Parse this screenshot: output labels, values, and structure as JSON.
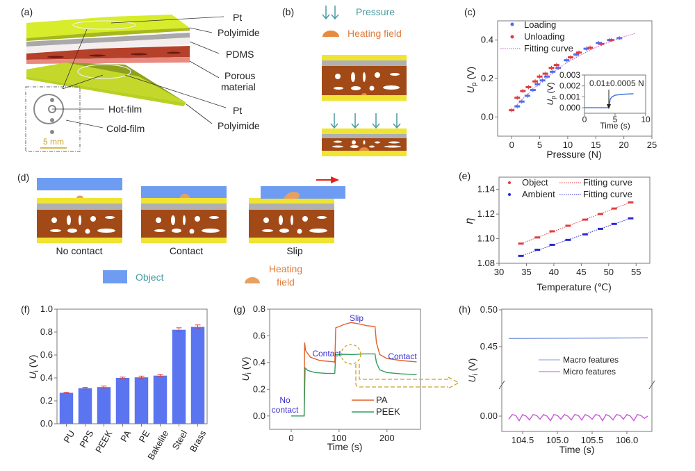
{
  "panels": {
    "a": "(a)",
    "b": "(b)",
    "c": "(c)",
    "d": "(d)",
    "e": "(e)",
    "f": "(f)",
    "g": "(g)",
    "h": "(h)"
  },
  "diagram_a": {
    "pt_top": "Pt",
    "polyimide_top": "Polyimide",
    "pdms": "PDMS",
    "porous_1": "Porous",
    "porous_2": "material",
    "pt_bottom": "Pt",
    "polyimide_bottom": "Polyimide",
    "hot_film": "Hot-film",
    "cold_film": "Cold-film",
    "scale_bar": "5 mm",
    "colors": {
      "polyimide": "#d7ec2a",
      "pdms": "#b9b9b9",
      "porous": "#b5412a",
      "pt": "#ffffff",
      "scale": "#c9a227"
    }
  },
  "diagram_b": {
    "pressure": "Pressure",
    "heating_field": "Heating field",
    "colors": {
      "pressure": "#4a9a9f",
      "heating": "#e07b3a",
      "layer_yellow": "#f0e433",
      "layer_gray": "#b0b0b0",
      "layer_brown": "#a24a17"
    }
  },
  "diagram_d": {
    "states": [
      "No contact",
      "Contact",
      "Slip"
    ],
    "legend_object": "Object",
    "legend_heating_1": "Heating",
    "legend_heating_2": "field",
    "colors": {
      "object": "#6e9cf2",
      "heating": "#e8a060",
      "slip_arrow": "#e8201a",
      "legend_text": "#4a9a9f"
    }
  },
  "chart_data": [
    {
      "id": "c",
      "type": "scatter",
      "xlabel": "Pressure (N)",
      "ylabel": {
        "main": "U",
        "sub": "p",
        "unit": " (V)"
      },
      "xlim": [
        -2.5,
        25
      ],
      "ylim": [
        -0.1,
        0.5
      ],
      "xticks": [
        0,
        5,
        10,
        15,
        20,
        25
      ],
      "yticks": [
        0.0,
        0.2,
        0.4
      ],
      "ytick_labels": [
        "0.0",
        "0.2",
        "0.4"
      ],
      "series": [
        {
          "name": "Loading",
          "color": "#4a6ff0",
          "x": [
            1,
            1.8,
            2.8,
            3.8,
            4.6,
            5.5,
            6.3,
            7.3,
            8.3,
            9.8,
            11.5,
            13.3,
            15.5,
            17.5,
            19.2
          ],
          "y": [
            0.055,
            0.08,
            0.11,
            0.14,
            0.17,
            0.19,
            0.21,
            0.235,
            0.255,
            0.295,
            0.325,
            0.355,
            0.385,
            0.4,
            0.41
          ]
        },
        {
          "name": "Unloading",
          "color": "#e23b3b",
          "x": [
            0,
            1,
            2,
            3,
            4.2,
            5,
            6,
            7.1,
            8,
            10.5,
            12,
            14,
            16,
            17.8
          ],
          "y": [
            0.035,
            0.1,
            0.135,
            0.155,
            0.185,
            0.21,
            0.225,
            0.255,
            0.27,
            0.31,
            0.335,
            0.36,
            0.38,
            0.4
          ]
        },
        {
          "name": "Fitting curve",
          "color": "#c04fc0",
          "style": "dotted",
          "x": [
            0,
            2,
            4,
            6,
            8,
            10,
            12,
            14,
            16,
            18,
            20,
            22
          ],
          "y": [
            0.035,
            0.095,
            0.15,
            0.2,
            0.245,
            0.285,
            0.318,
            0.348,
            0.375,
            0.397,
            0.417,
            0.435
          ]
        }
      ],
      "legend": "top-left"
    },
    {
      "id": "c_inset",
      "type": "line",
      "xlabel": "Time (s)",
      "ylabel": {
        "main": "U",
        "sub": "p",
        "unit": " (V)"
      },
      "xlim": [
        0,
        10
      ],
      "ylim": [
        -0.0005,
        0.003
      ],
      "xticks": [
        0,
        5,
        10
      ],
      "yticks": [
        0,
        0.001,
        0.002,
        0.003
      ],
      "ytick_labels": [
        "0.000",
        "0.001",
        "0.002",
        "0.003"
      ],
      "annotation": "0.01±0.0005 N",
      "annotation_x": 4,
      "series": [
        {
          "color": "#3b6fd8",
          "x": [
            0,
            3.9,
            4.0,
            4.2,
            4.5,
            5,
            6,
            7,
            8
          ],
          "y": [
            0,
            0,
            0.0001,
            0.0008,
            0.001,
            0.00115,
            0.00122,
            0.00126,
            0.00128
          ]
        }
      ]
    },
    {
      "id": "e",
      "type": "scatter",
      "xlabel": "Temperature (℃)",
      "ylabel": {
        "main": "η",
        "sub": "",
        "unit": ""
      },
      "xlim": [
        30,
        57.5
      ],
      "ylim": [
        1.08,
        1.15
      ],
      "xticks": [
        30,
        35,
        40,
        45,
        50,
        55
      ],
      "yticks": [
        1.08,
        1.1,
        1.12,
        1.14
      ],
      "ytick_labels": [
        "1.08",
        "1.10",
        "1.12",
        "1.14"
      ],
      "series": [
        {
          "name": "Object",
          "color": "#e23b3b",
          "x": [
            34,
            37,
            39.7,
            42.6,
            45.7,
            48.5,
            51,
            54
          ],
          "y": [
            1.096,
            1.101,
            1.106,
            1.1105,
            1.1155,
            1.12,
            1.1245,
            1.1295
          ]
        },
        {
          "name": "Ambient",
          "color": "#2a2ad0",
          "x": [
            34,
            37,
            39.7,
            42.6,
            45.7,
            48.5,
            51,
            54
          ],
          "y": [
            1.086,
            1.091,
            1.095,
            1.099,
            1.1035,
            1.108,
            1.112,
            1.1165
          ]
        }
      ],
      "fit_label": "Fitting curve",
      "legend": "top"
    },
    {
      "id": "f",
      "type": "bar",
      "ylabel": {
        "main": "U",
        "sub": "i",
        "unit": " (V)"
      },
      "ylim": [
        0,
        1.0
      ],
      "yticks": [
        0,
        0.2,
        0.4,
        0.6,
        0.8,
        1.0
      ],
      "ytick_labels": [
        "0.0",
        "0.2",
        "0.4",
        "0.6",
        "0.8",
        "1.0"
      ],
      "categories": [
        "PU",
        "PPS",
        "PEEK",
        "PA",
        "PE",
        "Bakelite",
        "Steel",
        "Brass"
      ],
      "values": [
        0.27,
        0.31,
        0.32,
        0.4,
        0.405,
        0.42,
        0.82,
        0.845
      ],
      "errors": [
        0.004,
        0.008,
        0.009,
        0.007,
        0.011,
        0.009,
        0.017,
        0.017
      ],
      "bar_color": "#5b74f0",
      "error_color": "#e23b3b"
    },
    {
      "id": "g",
      "type": "line",
      "xlabel": "Time (s)",
      "ylabel": {
        "main": "U",
        "sub": "i",
        "unit": " (V)"
      },
      "xlim": [
        -45,
        270
      ],
      "ylim": [
        -0.1,
        0.8
      ],
      "xticks": [
        0,
        100,
        200
      ],
      "yticks": [
        0,
        0.2,
        0.4,
        0.6,
        0.8
      ],
      "ytick_labels": [
        "0.0",
        "0.2",
        "0.4",
        "0.6",
        "0.8"
      ],
      "series": [
        {
          "name": "PA",
          "color": "#e0612a",
          "x": [
            0,
            27,
            28,
            30,
            40,
            60,
            90,
            91,
            93,
            100,
            110,
            125,
            140,
            160,
            175,
            178,
            185,
            200,
            230,
            262
          ],
          "y": [
            0,
            0,
            0.55,
            0.49,
            0.44,
            0.415,
            0.405,
            0.4,
            0.66,
            0.67,
            0.685,
            0.7,
            0.69,
            0.675,
            0.67,
            0.55,
            0.46,
            0.43,
            0.415,
            0.405
          ]
        },
        {
          "name": "PEEK",
          "color": "#2e9e5e",
          "x": [
            0,
            27,
            29,
            35,
            50,
            70,
            90,
            91,
            93,
            110,
            130,
            150,
            175,
            178,
            185,
            200,
            230,
            262
          ],
          "y": [
            0,
            0,
            0.36,
            0.34,
            0.325,
            0.32,
            0.318,
            0.32,
            0.46,
            0.462,
            0.46,
            0.465,
            0.465,
            0.4,
            0.345,
            0.325,
            0.315,
            0.31
          ]
        }
      ],
      "annotations": {
        "no_contact_1": "No",
        "no_contact_2": "contact",
        "contact_1": "Contact",
        "slip": "Slip",
        "contact_2": "Contact"
      },
      "legend": "bottom-right"
    },
    {
      "id": "h",
      "type": "line",
      "xlabel": "Time (s)",
      "ylabel": {
        "main": "U",
        "sub": "i",
        "unit": " (V)"
      },
      "xlim": [
        104.2,
        106.36
      ],
      "y_break": true,
      "y_segments": [
        [
          -0.02,
          0.03
        ],
        [
          0.42,
          0.5
        ]
      ],
      "xticks": [
        104.5,
        105.0,
        105.5,
        106.0
      ],
      "xtick_labels": [
        "104.5",
        "105.0",
        "105.5",
        "106.0"
      ],
      "yticks": [
        0,
        0.45,
        0.5
      ],
      "ytick_labels": [
        "0.00",
        "0.45",
        "0.50"
      ],
      "series": [
        {
          "name": "Macro features",
          "color": "#7e9be0",
          "x": [
            104.3,
            106.3
          ],
          "y": [
            0.461,
            0.462
          ]
        },
        {
          "name": "Micro features",
          "color": "#c45ad6",
          "x_start": 104.3,
          "x_step": 0.05,
          "y": [
            -0.004,
            0.002,
            0.001,
            -0.006,
            0.002,
            0.0,
            -0.005,
            0.002,
            0.001,
            -0.004,
            0.002,
            0.0,
            -0.006,
            0.002,
            0.001,
            -0.004,
            0.002,
            0.0,
            -0.005,
            0.002,
            0.001,
            -0.005,
            0.002,
            0.0,
            -0.004,
            0.002,
            0.001,
            -0.006,
            0.002,
            0.0,
            -0.005,
            0.002,
            0.001,
            -0.004,
            0.002,
            0.0,
            -0.006,
            0.002,
            0.001,
            -0.003,
            0.0
          ]
        }
      ],
      "legend": "center"
    }
  ]
}
